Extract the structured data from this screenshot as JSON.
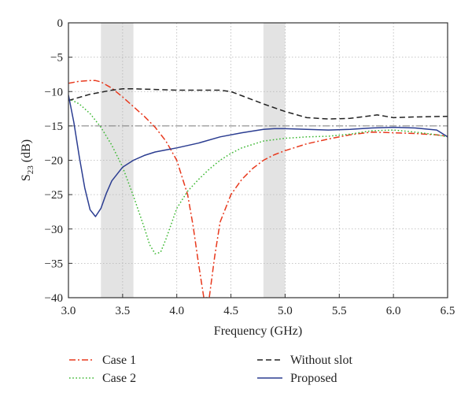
{
  "chart_data": {
    "type": "line",
    "xlabel": "Frequency (GHz)",
    "ylabel_main": "S",
    "ylabel_sub": "23",
    "ylabel_unit": " (dB)",
    "xlim": [
      3.0,
      6.5
    ],
    "ylim": [
      -40,
      0
    ],
    "xticks": [
      "3.0",
      "3.5",
      "4.0",
      "4.5",
      "5.0",
      "5.5",
      "6.0",
      "6.5"
    ],
    "yticks": [
      "0",
      "−5",
      "−10",
      "−15",
      "−20",
      "−25",
      "−30",
      "−35",
      "−40"
    ],
    "grid": true,
    "legend_position": "below",
    "shaded_bands": [
      [
        3.3,
        3.6
      ],
      [
        4.8,
        5.0
      ]
    ],
    "reference_line_y": -15,
    "series": [
      {
        "name": "Case 1",
        "color": "#e8391d",
        "dash": "dashdot",
        "x": [
          3.0,
          3.1,
          3.2,
          3.25,
          3.3,
          3.4,
          3.5,
          3.6,
          3.7,
          3.8,
          3.9,
          4.0,
          4.1,
          4.15,
          4.2,
          4.25,
          4.3,
          4.35,
          4.4,
          4.5,
          4.6,
          4.7,
          4.8,
          4.9,
          5.0,
          5.2,
          5.4,
          5.6,
          5.8,
          6.0,
          6.2,
          6.4,
          6.5
        ],
        "y": [
          -8.8,
          -8.5,
          -8.4,
          -8.4,
          -8.6,
          -9.5,
          -10.8,
          -12.2,
          -13.6,
          -15.2,
          -17.2,
          -20.0,
          -25.0,
          -29.5,
          -35.0,
          -40.0,
          -40.0,
          -34.0,
          -29.0,
          -25.0,
          -22.8,
          -21.2,
          -20.0,
          -19.2,
          -18.6,
          -17.6,
          -16.9,
          -16.3,
          -15.9,
          -16.0,
          -16.1,
          -16.3,
          -16.5
        ]
      },
      {
        "name": "Case 2",
        "color": "#3cb832",
        "dash": "dot",
        "x": [
          3.0,
          3.1,
          3.2,
          3.3,
          3.4,
          3.5,
          3.6,
          3.7,
          3.75,
          3.8,
          3.85,
          3.9,
          4.0,
          4.1,
          4.2,
          4.3,
          4.4,
          4.5,
          4.6,
          4.8,
          5.0,
          5.2,
          5.4,
          5.6,
          5.8,
          6.0,
          6.2,
          6.4,
          6.5
        ],
        "y": [
          -11.0,
          -11.8,
          -13.2,
          -15.2,
          -17.8,
          -21.0,
          -25.2,
          -29.8,
          -32.3,
          -33.6,
          -33.4,
          -31.5,
          -27.0,
          -24.5,
          -22.8,
          -21.3,
          -20.0,
          -19.0,
          -18.2,
          -17.2,
          -16.8,
          -16.6,
          -16.5,
          -16.2,
          -15.7,
          -15.6,
          -15.9,
          -16.3,
          -16.6
        ]
      },
      {
        "name": "Without slot",
        "color": "#222222",
        "dash": "dash",
        "x": [
          3.0,
          3.2,
          3.4,
          3.5,
          3.6,
          3.8,
          4.0,
          4.2,
          4.4,
          4.5,
          4.6,
          4.8,
          5.0,
          5.2,
          5.4,
          5.6,
          5.8,
          5.85,
          6.0,
          6.2,
          6.5
        ],
        "y": [
          -11.3,
          -10.4,
          -9.8,
          -9.6,
          -9.6,
          -9.7,
          -9.8,
          -9.8,
          -9.8,
          -10.0,
          -10.6,
          -11.8,
          -12.9,
          -13.8,
          -14.0,
          -13.9,
          -13.5,
          -13.4,
          -13.8,
          -13.7,
          -13.6
        ]
      },
      {
        "name": "Proposed",
        "color": "#2b3d91",
        "dash": "solid",
        "x": [
          3.0,
          3.05,
          3.1,
          3.15,
          3.2,
          3.25,
          3.3,
          3.35,
          3.4,
          3.5,
          3.6,
          3.7,
          3.8,
          3.9,
          4.0,
          4.2,
          4.4,
          4.6,
          4.8,
          4.9,
          5.0,
          5.2,
          5.4,
          5.6,
          5.8,
          6.0,
          6.2,
          6.4,
          6.5
        ],
        "y": [
          -10.5,
          -14.5,
          -19.5,
          -24.0,
          -27.2,
          -28.2,
          -27.0,
          -24.8,
          -23.0,
          -21.0,
          -20.0,
          -19.3,
          -18.8,
          -18.5,
          -18.2,
          -17.5,
          -16.6,
          -16.0,
          -15.5,
          -15.4,
          -15.4,
          -15.5,
          -15.6,
          -15.5,
          -15.3,
          -15.2,
          -15.3,
          -15.6,
          -16.6
        ]
      }
    ]
  }
}
